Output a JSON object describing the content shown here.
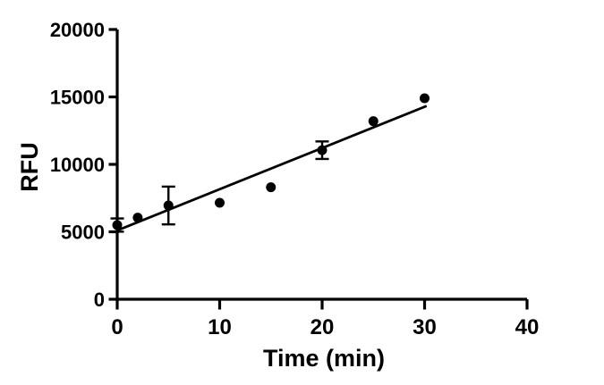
{
  "figure": {
    "background_color": "#ffffff",
    "foreground_color": "#000000"
  },
  "chart_data": {
    "type": "scatter",
    "title": "",
    "xlabel": "Time (min)",
    "ylabel": "RFU",
    "xlim": [
      0,
      40
    ],
    "ylim": [
      0,
      20000
    ],
    "x_ticks": [
      0,
      10,
      20,
      30,
      40
    ],
    "y_ticks": [
      0,
      5000,
      10000,
      15000,
      20000
    ],
    "grid": false,
    "legend": null,
    "marker_color": "#000000",
    "line_color": "#000000",
    "points": [
      {
        "x": 0,
        "y": 5500,
        "yerr": 490
      },
      {
        "x": 2,
        "y": 6050,
        "yerr": 0
      },
      {
        "x": 5,
        "y": 6950,
        "yerr": 1400
      },
      {
        "x": 10,
        "y": 7150,
        "yerr": 0
      },
      {
        "x": 15,
        "y": 8300,
        "yerr": 0
      },
      {
        "x": 20,
        "y": 11050,
        "yerr": 650
      },
      {
        "x": 25,
        "y": 13200,
        "yerr": 0
      },
      {
        "x": 30,
        "y": 14900,
        "yerr": 0
      }
    ],
    "fit_line": {
      "x_start": 0,
      "y_start": 5100,
      "x_end": 30.2,
      "y_end": 14330
    }
  }
}
